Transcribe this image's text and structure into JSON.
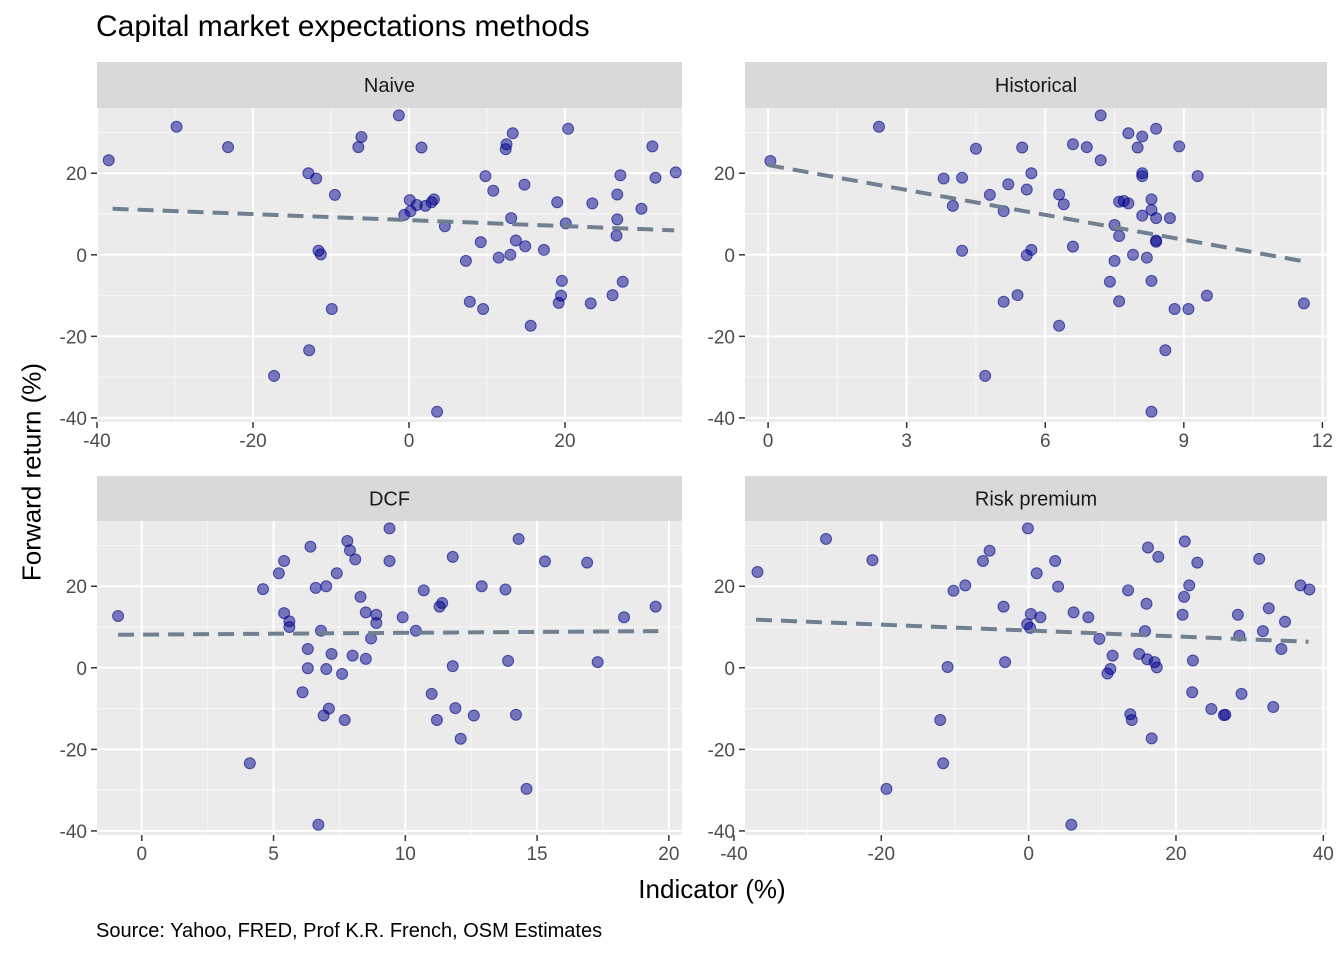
{
  "title": "Capital market expectations methods",
  "xlabel": "Indicator (%)",
  "ylabel": "Forward return (%)",
  "caption": "Source: Yahoo, FRED, Prof K.R. French, OSM Estimates",
  "colors": {
    "point": "#00008B",
    "trend": "#708090",
    "panel_bg": "#EBEBEB",
    "strip_bg": "#D9D9D9",
    "grid": "#FFFFFF"
  },
  "chart_data": [
    {
      "type": "scatter",
      "panel": "Naive",
      "xlim": [
        -40,
        35
      ],
      "ylim": [
        -41,
        36
      ],
      "x_ticks": [
        -40,
        -20,
        0,
        20
      ],
      "y_ticks": [
        -40,
        -20,
        0,
        20
      ],
      "trend": [
        [
          -38,
          11.3
        ],
        [
          34,
          6.0
        ]
      ],
      "points": [
        [
          -38.5,
          23.2
        ],
        [
          -29.8,
          31.4
        ],
        [
          -23.2,
          26.4
        ],
        [
          -17.3,
          -29.7
        ],
        [
          -12.9,
          20.0
        ],
        [
          -12.8,
          -23.4
        ],
        [
          -11.9,
          18.7
        ],
        [
          -11.6,
          1.0
        ],
        [
          -11.3,
          0.1
        ],
        [
          -9.9,
          -13.3
        ],
        [
          -9.5,
          14.7
        ],
        [
          -6.5,
          26.4
        ],
        [
          -6.1,
          28.9
        ],
        [
          -1.3,
          34.2
        ],
        [
          -0.6,
          9.8
        ],
        [
          0.1,
          13.4
        ],
        [
          0.2,
          10.7
        ],
        [
          1.0,
          12.2
        ],
        [
          1.6,
          26.3
        ],
        [
          2.1,
          12.0
        ],
        [
          2.9,
          12.9
        ],
        [
          3.2,
          13.6
        ],
        [
          3.6,
          -38.5
        ],
        [
          4.6,
          7.0
        ],
        [
          7.3,
          -1.5
        ],
        [
          7.8,
          -11.5
        ],
        [
          9.2,
          3.1
        ],
        [
          9.5,
          -13.3
        ],
        [
          9.8,
          19.3
        ],
        [
          10.8,
          15.7
        ],
        [
          11.5,
          -0.7
        ],
        [
          12.4,
          25.9
        ],
        [
          12.5,
          27.1
        ],
        [
          13.0,
          0.0
        ],
        [
          13.1,
          9.0
        ],
        [
          13.3,
          29.8
        ],
        [
          13.7,
          3.5
        ],
        [
          14.8,
          17.2
        ],
        [
          14.9,
          2.1
        ],
        [
          15.6,
          -17.4
        ],
        [
          17.3,
          1.2
        ],
        [
          19.0,
          12.9
        ],
        [
          19.2,
          -11.8
        ],
        [
          19.5,
          -10.0
        ],
        [
          19.6,
          -6.4
        ],
        [
          20.1,
          7.7
        ],
        [
          20.4,
          30.9
        ],
        [
          23.3,
          -11.9
        ],
        [
          23.5,
          12.6
        ],
        [
          26.1,
          -9.9
        ],
        [
          26.6,
          4.7
        ],
        [
          26.7,
          14.8
        ],
        [
          26.7,
          8.7
        ],
        [
          27.1,
          19.5
        ],
        [
          27.4,
          -6.6
        ],
        [
          29.8,
          11.3
        ],
        [
          31.2,
          26.6
        ],
        [
          31.6,
          18.9
        ],
        [
          34.2,
          20.2
        ]
      ]
    },
    {
      "type": "scatter",
      "panel": "Historical",
      "xlim": [
        -0.5,
        12.1
      ],
      "ylim": [
        -41,
        36
      ],
      "x_ticks": [
        0,
        3,
        6,
        9,
        12
      ],
      "y_ticks": [
        -40,
        -20,
        0,
        20
      ],
      "trend": [
        [
          0.0,
          22.0
        ],
        [
          11.6,
          -1.6
        ]
      ],
      "points": [
        [
          0.05,
          23.0
        ],
        [
          2.4,
          31.4
        ],
        [
          3.8,
          18.7
        ],
        [
          4.0,
          12.0
        ],
        [
          4.2,
          1.0
        ],
        [
          4.2,
          18.9
        ],
        [
          4.5,
          26.0
        ],
        [
          4.7,
          -29.7
        ],
        [
          4.8,
          14.7
        ],
        [
          5.1,
          -11.5
        ],
        [
          5.1,
          10.7
        ],
        [
          5.2,
          17.3
        ],
        [
          5.4,
          -9.9
        ],
        [
          5.5,
          26.3
        ],
        [
          5.6,
          -0.1
        ],
        [
          5.6,
          16.0
        ],
        [
          5.7,
          20.0
        ],
        [
          5.7,
          1.2
        ],
        [
          6.3,
          -17.4
        ],
        [
          6.3,
          14.8
        ],
        [
          6.4,
          12.4
        ],
        [
          6.6,
          2.0
        ],
        [
          6.6,
          27.1
        ],
        [
          6.9,
          26.4
        ],
        [
          7.2,
          34.2
        ],
        [
          7.2,
          23.2
        ],
        [
          7.4,
          -6.6
        ],
        [
          7.5,
          -1.5
        ],
        [
          7.5,
          7.3
        ],
        [
          7.6,
          -11.4
        ],
        [
          7.6,
          13.0
        ],
        [
          7.6,
          4.6
        ],
        [
          7.7,
          13.2
        ],
        [
          7.8,
          29.8
        ],
        [
          7.8,
          12.6
        ],
        [
          7.9,
          0.0
        ],
        [
          8.0,
          26.3
        ],
        [
          8.1,
          29.0
        ],
        [
          8.1,
          20.0
        ],
        [
          8.1,
          19.3
        ],
        [
          8.1,
          9.6
        ],
        [
          8.2,
          -0.7
        ],
        [
          8.3,
          11.0
        ],
        [
          8.3,
          13.6
        ],
        [
          8.3,
          -6.4
        ],
        [
          8.3,
          -38.5
        ],
        [
          8.4,
          30.9
        ],
        [
          8.4,
          3.5
        ],
        [
          8.4,
          3.2
        ],
        [
          8.4,
          9.0
        ],
        [
          8.6,
          -23.4
        ],
        [
          8.7,
          9.0
        ],
        [
          8.8,
          -13.3
        ],
        [
          8.9,
          26.6
        ],
        [
          9.1,
          -13.3
        ],
        [
          9.3,
          19.3
        ],
        [
          9.5,
          -10.0
        ],
        [
          11.6,
          -11.9
        ]
      ]
    },
    {
      "type": "scatter",
      "panel": "DCF",
      "xlim": [
        -1.7,
        20.5
      ],
      "ylim": [
        -41,
        36
      ],
      "x_ticks": [
        0,
        5,
        10,
        15,
        20
      ],
      "y_ticks": [
        -40,
        -20,
        0,
        20
      ],
      "trend": [
        [
          -0.9,
          8.1
        ],
        [
          19.6,
          9.0
        ]
      ],
      "points": [
        [
          -0.9,
          12.7
        ],
        [
          4.1,
          -23.4
        ],
        [
          4.6,
          19.3
        ],
        [
          5.2,
          23.2
        ],
        [
          5.4,
          26.2
        ],
        [
          5.4,
          13.4
        ],
        [
          5.6,
          11.4
        ],
        [
          5.6,
          10.0
        ],
        [
          6.1,
          -6.0
        ],
        [
          6.3,
          4.6
        ],
        [
          6.3,
          -0.1
        ],
        [
          6.4,
          29.7
        ],
        [
          6.6,
          19.6
        ],
        [
          6.7,
          -38.5
        ],
        [
          6.8,
          9.1
        ],
        [
          6.9,
          -11.7
        ],
        [
          7.0,
          -0.3
        ],
        [
          7.0,
          20.0
        ],
        [
          7.1,
          -10.0
        ],
        [
          7.2,
          3.4
        ],
        [
          7.4,
          23.2
        ],
        [
          7.6,
          -1.5
        ],
        [
          7.7,
          -12.8
        ],
        [
          7.8,
          31.1
        ],
        [
          7.9,
          28.8
        ],
        [
          8.0,
          3.0
        ],
        [
          8.1,
          26.6
        ],
        [
          8.3,
          17.4
        ],
        [
          8.5,
          2.2
        ],
        [
          8.5,
          13.6
        ],
        [
          8.7,
          7.2
        ],
        [
          8.9,
          13.0
        ],
        [
          8.9,
          11.0
        ],
        [
          9.4,
          34.2
        ],
        [
          9.4,
          26.2
        ],
        [
          9.9,
          12.4
        ],
        [
          10.4,
          9.1
        ],
        [
          10.7,
          19.0
        ],
        [
          11.0,
          -6.4
        ],
        [
          11.2,
          -12.8
        ],
        [
          11.3,
          15.0
        ],
        [
          11.4,
          15.9
        ],
        [
          11.8,
          27.2
        ],
        [
          11.8,
          0.4
        ],
        [
          11.9,
          -9.9
        ],
        [
          12.1,
          -17.4
        ],
        [
          12.6,
          -11.7
        ],
        [
          12.9,
          20.0
        ],
        [
          13.8,
          19.2
        ],
        [
          13.9,
          1.7
        ],
        [
          14.2,
          -11.5
        ],
        [
          14.3,
          31.6
        ],
        [
          14.6,
          -29.7
        ],
        [
          15.3,
          26.1
        ],
        [
          16.9,
          25.8
        ],
        [
          17.3,
          1.4
        ],
        [
          18.3,
          12.4
        ],
        [
          19.5,
          15.0
        ]
      ]
    },
    {
      "type": "scatter",
      "panel": "Risk premium",
      "xlim": [
        -38.5,
        40.5
      ],
      "ylim": [
        -41,
        36
      ],
      "x_ticks": [
        -40,
        -20,
        0,
        20,
        40
      ],
      "y_ticks": [
        -40,
        -20,
        0,
        20
      ],
      "trend": [
        [
          -37,
          11.8
        ],
        [
          38,
          6.4
        ]
      ],
      "points": [
        [
          -36.8,
          23.5
        ],
        [
          -27.5,
          31.6
        ],
        [
          -21.2,
          26.4
        ],
        [
          -19.3,
          -29.7
        ],
        [
          -12.0,
          -12.8
        ],
        [
          -11.6,
          -23.4
        ],
        [
          -11.0,
          0.2
        ],
        [
          -10.2,
          18.9
        ],
        [
          -8.6,
          20.2
        ],
        [
          -6.2,
          26.2
        ],
        [
          -5.3,
          28.7
        ],
        [
          -3.4,
          15.0
        ],
        [
          -3.2,
          1.4
        ],
        [
          -0.1,
          34.2
        ],
        [
          -0.2,
          10.7
        ],
        [
          0.2,
          9.8
        ],
        [
          0.3,
          13.2
        ],
        [
          1.1,
          23.2
        ],
        [
          1.6,
          12.4
        ],
        [
          3.6,
          26.2
        ],
        [
          4.0,
          19.9
        ],
        [
          5.8,
          -38.5
        ],
        [
          6.1,
          13.6
        ],
        [
          8.1,
          12.4
        ],
        [
          9.6,
          7.1
        ],
        [
          10.7,
          -1.4
        ],
        [
          11.1,
          -0.3
        ],
        [
          11.4,
          3.0
        ],
        [
          13.5,
          19.0
        ],
        [
          13.8,
          -11.4
        ],
        [
          14.0,
          -12.8
        ],
        [
          15.0,
          3.4
        ],
        [
          15.8,
          9.0
        ],
        [
          16.0,
          15.7
        ],
        [
          16.1,
          2.1
        ],
        [
          16.2,
          29.5
        ],
        [
          16.7,
          -17.3
        ],
        [
          17.1,
          1.4
        ],
        [
          17.4,
          0.1
        ],
        [
          17.6,
          27.2
        ],
        [
          20.9,
          13.0
        ],
        [
          21.1,
          17.4
        ],
        [
          21.2,
          31.0
        ],
        [
          21.8,
          20.2
        ],
        [
          22.2,
          -6.0
        ],
        [
          22.3,
          1.8
        ],
        [
          22.9,
          25.8
        ],
        [
          24.8,
          -10.1
        ],
        [
          26.5,
          -11.6
        ],
        [
          26.7,
          -11.5
        ],
        [
          28.4,
          13.0
        ],
        [
          28.6,
          7.9
        ],
        [
          28.9,
          -6.4
        ],
        [
          31.3,
          26.7
        ],
        [
          31.8,
          9.0
        ],
        [
          32.6,
          14.6
        ],
        [
          33.2,
          -9.6
        ],
        [
          34.3,
          4.6
        ],
        [
          34.8,
          11.3
        ],
        [
          36.9,
          20.2
        ],
        [
          38.1,
          19.2
        ]
      ]
    }
  ]
}
